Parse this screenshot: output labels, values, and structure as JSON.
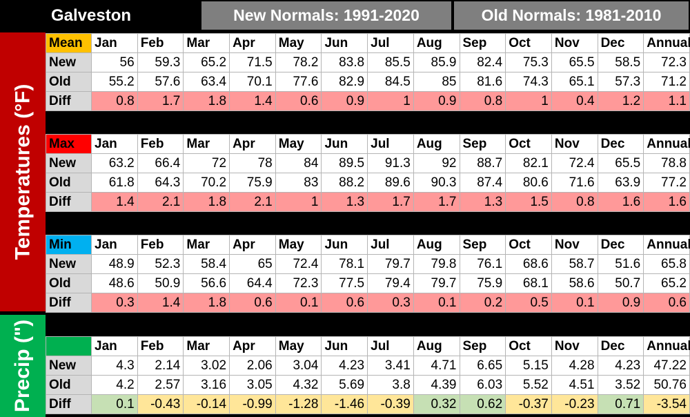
{
  "title": "Galveston",
  "new_header": "New Normals: 1991-2020",
  "old_header": "Old Normals: 1981-2010",
  "temp_label": "Temperatures (°F)",
  "precip_label": "Precip (\")",
  "months": [
    "Jan",
    "Feb",
    "Mar",
    "Apr",
    "May",
    "Jun",
    "Jul",
    "Aug",
    "Sep",
    "Oct",
    "Nov",
    "Dec",
    "Annual"
  ],
  "row_labels": {
    "new": "New",
    "old": "Old",
    "diff": "Diff"
  },
  "colors": {
    "mean": "#ffc000",
    "max": "#ff0000",
    "min": "#00b0f0",
    "precip_label_cell": "#00b050",
    "temp_bar": "#c00000",
    "precip_bar": "#00b050",
    "pos_diff": "#ff9999",
    "precip_pos": "#c6e0b4",
    "precip_neg": "#ffe699"
  },
  "sections": [
    {
      "label": "Mean",
      "new": [
        "56",
        "59.3",
        "65.2",
        "71.5",
        "78.2",
        "83.8",
        "85.5",
        "85.9",
        "82.4",
        "75.3",
        "65.5",
        "58.5",
        "72.3"
      ],
      "old": [
        "55.2",
        "57.6",
        "63.4",
        "70.1",
        "77.6",
        "82.9",
        "84.5",
        "85",
        "81.6",
        "74.3",
        "65.1",
        "57.3",
        "71.2"
      ],
      "diff": [
        "0.8",
        "1.7",
        "1.8",
        "1.4",
        "0.6",
        "0.9",
        "1",
        "0.9",
        "0.8",
        "1",
        "0.4",
        "1.2",
        "1.1"
      ]
    },
    {
      "label": "Max",
      "new": [
        "63.2",
        "66.4",
        "72",
        "78",
        "84",
        "89.5",
        "91.3",
        "92",
        "88.7",
        "82.1",
        "72.4",
        "65.5",
        "78.8"
      ],
      "old": [
        "61.8",
        "64.3",
        "70.2",
        "75.9",
        "83",
        "88.2",
        "89.6",
        "90.3",
        "87.4",
        "80.6",
        "71.6",
        "63.9",
        "77.2"
      ],
      "diff": [
        "1.4",
        "2.1",
        "1.8",
        "2.1",
        "1",
        "1.3",
        "1.7",
        "1.7",
        "1.3",
        "1.5",
        "0.8",
        "1.6",
        "1.6"
      ]
    },
    {
      "label": "Min",
      "new": [
        "48.9",
        "52.3",
        "58.4",
        "65",
        "72.4",
        "78.1",
        "79.7",
        "79.8",
        "76.1",
        "68.6",
        "58.7",
        "51.6",
        "65.8"
      ],
      "old": [
        "48.6",
        "50.9",
        "56.6",
        "64.4",
        "72.3",
        "77.5",
        "79.4",
        "79.7",
        "75.9",
        "68.1",
        "58.6",
        "50.7",
        "65.2"
      ],
      "diff": [
        "0.3",
        "1.4",
        "1.8",
        "0.6",
        "0.1",
        "0.6",
        "0.3",
        "0.1",
        "0.2",
        "0.5",
        "0.1",
        "0.9",
        "0.6"
      ]
    },
    {
      "label": "",
      "new": [
        "4.3",
        "2.14",
        "3.02",
        "2.06",
        "3.04",
        "4.23",
        "3.41",
        "4.71",
        "6.65",
        "5.15",
        "4.28",
        "4.23",
        "47.22"
      ],
      "old": [
        "4.2",
        "2.57",
        "3.16",
        "3.05",
        "4.32",
        "5.69",
        "3.8",
        "4.39",
        "6.03",
        "5.52",
        "4.51",
        "3.52",
        "50.76"
      ],
      "diff": [
        "0.1",
        "-0.43",
        "-0.14",
        "-0.99",
        "-1.28",
        "-1.46",
        "-0.39",
        "0.32",
        "0.62",
        "-0.37",
        "-0.23",
        "0.71",
        "-3.54"
      ]
    }
  ]
}
